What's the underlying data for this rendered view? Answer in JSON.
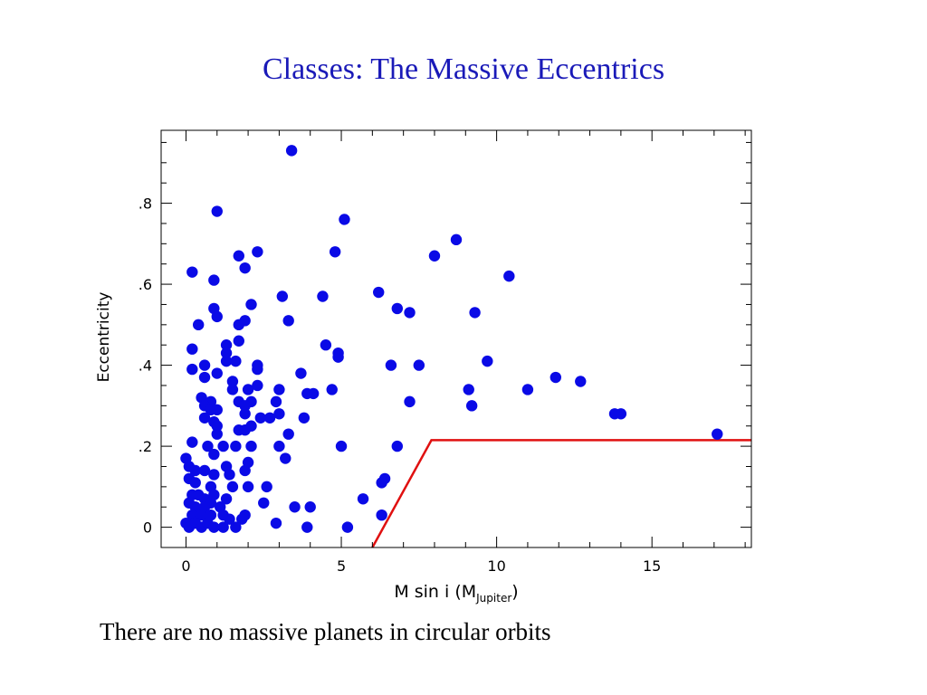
{
  "slide": {
    "title": "Classes: The Massive Eccentrics",
    "caption": "There are no massive planets in circular orbits"
  },
  "chart_data": {
    "type": "scatter",
    "title": "",
    "xlabel_main": "M  sin  i  (M",
    "xlabel_sub": "Jupiter",
    "xlabel_close": ")",
    "ylabel": "Eccentricity",
    "xlim": [
      -0.8,
      18.2
    ],
    "ylim": [
      -0.05,
      0.98
    ],
    "x_ticks": [
      0,
      5,
      10,
      15
    ],
    "x_tick_labels": [
      "0",
      "5",
      "10",
      "15"
    ],
    "y_ticks": [
      0,
      0.2,
      0.4,
      0.6,
      0.8
    ],
    "y_tick_labels": [
      "0",
      ".2",
      ".4",
      ".6",
      ".8"
    ],
    "grid": false,
    "colors": {
      "points": "#0a0ae6",
      "line": "#e01010",
      "axes": "#000000"
    },
    "boundary_line": {
      "x": [
        6.0,
        7.9,
        18.2
      ],
      "y": [
        -0.05,
        0.215,
        0.215
      ]
    },
    "points": [
      [
        3.4,
        0.93
      ],
      [
        1.0,
        0.78
      ],
      [
        5.1,
        0.76
      ],
      [
        8.7,
        0.71
      ],
      [
        2.3,
        0.68
      ],
      [
        4.8,
        0.68
      ],
      [
        8.0,
        0.67
      ],
      [
        1.7,
        0.67
      ],
      [
        0.2,
        0.63
      ],
      [
        1.9,
        0.64
      ],
      [
        0.9,
        0.61
      ],
      [
        10.4,
        0.62
      ],
      [
        6.2,
        0.58
      ],
      [
        3.1,
        0.57
      ],
      [
        4.4,
        0.57
      ],
      [
        2.1,
        0.55
      ],
      [
        0.9,
        0.54
      ],
      [
        6.8,
        0.54
      ],
      [
        7.2,
        0.53
      ],
      [
        9.3,
        0.53
      ],
      [
        1.0,
        0.52
      ],
      [
        3.3,
        0.51
      ],
      [
        1.9,
        0.51
      ],
      [
        0.4,
        0.5
      ],
      [
        1.7,
        0.5
      ],
      [
        1.3,
        0.45
      ],
      [
        4.5,
        0.45
      ],
      [
        1.7,
        0.46
      ],
      [
        0.2,
        0.44
      ],
      [
        1.3,
        0.43
      ],
      [
        4.9,
        0.43
      ],
      [
        4.9,
        0.42
      ],
      [
        1.3,
        0.41
      ],
      [
        1.6,
        0.41
      ],
      [
        9.7,
        0.41
      ],
      [
        0.6,
        0.4
      ],
      [
        2.3,
        0.4
      ],
      [
        6.6,
        0.4
      ],
      [
        7.5,
        0.4
      ],
      [
        0.2,
        0.39
      ],
      [
        2.3,
        0.39
      ],
      [
        1.0,
        0.38
      ],
      [
        3.7,
        0.38
      ],
      [
        0.6,
        0.37
      ],
      [
        11.9,
        0.37
      ],
      [
        12.7,
        0.36
      ],
      [
        1.5,
        0.36
      ],
      [
        2.3,
        0.35
      ],
      [
        9.1,
        0.34
      ],
      [
        11.0,
        0.34
      ],
      [
        1.5,
        0.34
      ],
      [
        2.0,
        0.34
      ],
      [
        3.0,
        0.34
      ],
      [
        4.7,
        0.34
      ],
      [
        3.9,
        0.33
      ],
      [
        4.1,
        0.33
      ],
      [
        0.5,
        0.32
      ],
      [
        0.8,
        0.31
      ],
      [
        1.7,
        0.31
      ],
      [
        2.1,
        0.31
      ],
      [
        2.9,
        0.31
      ],
      [
        7.2,
        0.31
      ],
      [
        0.6,
        0.3
      ],
      [
        1.9,
        0.3
      ],
      [
        9.2,
        0.3
      ],
      [
        0.8,
        0.29
      ],
      [
        1.0,
        0.29
      ],
      [
        1.9,
        0.28
      ],
      [
        3.0,
        0.28
      ],
      [
        13.8,
        0.28
      ],
      [
        14.0,
        0.28
      ],
      [
        0.6,
        0.27
      ],
      [
        2.4,
        0.27
      ],
      [
        2.7,
        0.27
      ],
      [
        3.8,
        0.27
      ],
      [
        0.9,
        0.26
      ],
      [
        1.0,
        0.25
      ],
      [
        2.1,
        0.25
      ],
      [
        1.7,
        0.24
      ],
      [
        1.9,
        0.24
      ],
      [
        1.0,
        0.23
      ],
      [
        3.3,
        0.23
      ],
      [
        17.1,
        0.23
      ],
      [
        0.2,
        0.21
      ],
      [
        0.7,
        0.2
      ],
      [
        1.2,
        0.2
      ],
      [
        1.6,
        0.2
      ],
      [
        2.1,
        0.2
      ],
      [
        3.0,
        0.2
      ],
      [
        5.0,
        0.2
      ],
      [
        6.8,
        0.2
      ],
      [
        0.9,
        0.18
      ],
      [
        3.2,
        0.17
      ],
      [
        0.0,
        0.17
      ],
      [
        0.1,
        0.15
      ],
      [
        1.3,
        0.15
      ],
      [
        2.0,
        0.16
      ],
      [
        0.3,
        0.14
      ],
      [
        0.6,
        0.14
      ],
      [
        1.9,
        0.14
      ],
      [
        0.9,
        0.13
      ],
      [
        1.4,
        0.13
      ],
      [
        0.1,
        0.12
      ],
      [
        0.3,
        0.11
      ],
      [
        6.4,
        0.12
      ],
      [
        6.3,
        0.11
      ],
      [
        0.8,
        0.1
      ],
      [
        1.5,
        0.1
      ],
      [
        2.0,
        0.1
      ],
      [
        2.6,
        0.1
      ],
      [
        0.2,
        0.08
      ],
      [
        0.4,
        0.08
      ],
      [
        0.6,
        0.07
      ],
      [
        0.9,
        0.08
      ],
      [
        1.3,
        0.07
      ],
      [
        5.7,
        0.07
      ],
      [
        0.1,
        0.06
      ],
      [
        0.3,
        0.05
      ],
      [
        0.6,
        0.05
      ],
      [
        0.8,
        0.06
      ],
      [
        1.1,
        0.05
      ],
      [
        2.5,
        0.06
      ],
      [
        3.5,
        0.05
      ],
      [
        4.0,
        0.05
      ],
      [
        0.2,
        0.03
      ],
      [
        0.5,
        0.03
      ],
      [
        0.8,
        0.03
      ],
      [
        1.2,
        0.03
      ],
      [
        1.9,
        0.03
      ],
      [
        6.3,
        0.03
      ],
      [
        0.0,
        0.01
      ],
      [
        0.1,
        0.0
      ],
      [
        0.3,
        0.01
      ],
      [
        0.5,
        0.0
      ],
      [
        0.7,
        0.01
      ],
      [
        0.9,
        0.0
      ],
      [
        1.2,
        0.0
      ],
      [
        1.4,
        0.02
      ],
      [
        1.6,
        0.0
      ],
      [
        1.8,
        0.02
      ],
      [
        2.9,
        0.01
      ],
      [
        3.9,
        0.0
      ],
      [
        5.2,
        0.0
      ]
    ]
  }
}
